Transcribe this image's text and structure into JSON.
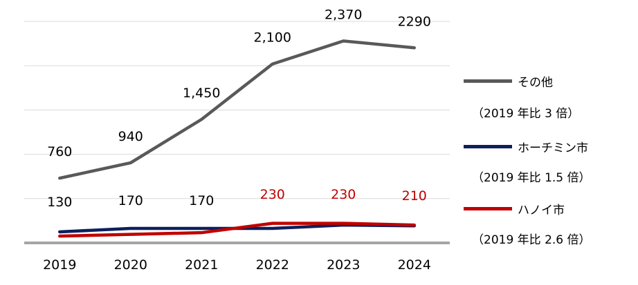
{
  "chart_data": {
    "type": "line",
    "x": [
      "2019",
      "2020",
      "2021",
      "2022",
      "2023",
      "2024"
    ],
    "ylim": [
      0,
      2600
    ],
    "grid": true,
    "legend_position": "right",
    "series": [
      {
        "name": "その他",
        "note": "（2019 年比 3 倍）",
        "color": "#595959",
        "values": [
          760,
          940,
          1450,
          2100,
          2370,
          2290
        ],
        "labels": [
          "760",
          "940",
          "1,450",
          "2,100",
          "2,370",
          "2290"
        ],
        "label_color": "#000000"
      },
      {
        "name": "ホーチミン市",
        "note": "（2019 年比 1.5 倍）",
        "color": "#0d1f5c",
        "values": [
          130,
          170,
          170,
          170,
          210,
          200
        ],
        "labels": [
          "130",
          "170",
          "170",
          "",
          "",
          ""
        ],
        "label_color": "#000000"
      },
      {
        "name": "ハノイ市",
        "note": "（2019 年比 2.6 倍）",
        "color": "#c00000",
        "values": [
          80,
          100,
          120,
          230,
          230,
          210
        ],
        "labels": [
          "",
          "",
          "",
          "230",
          "230",
          "210"
        ],
        "label_color": "#c00000"
      }
    ]
  }
}
